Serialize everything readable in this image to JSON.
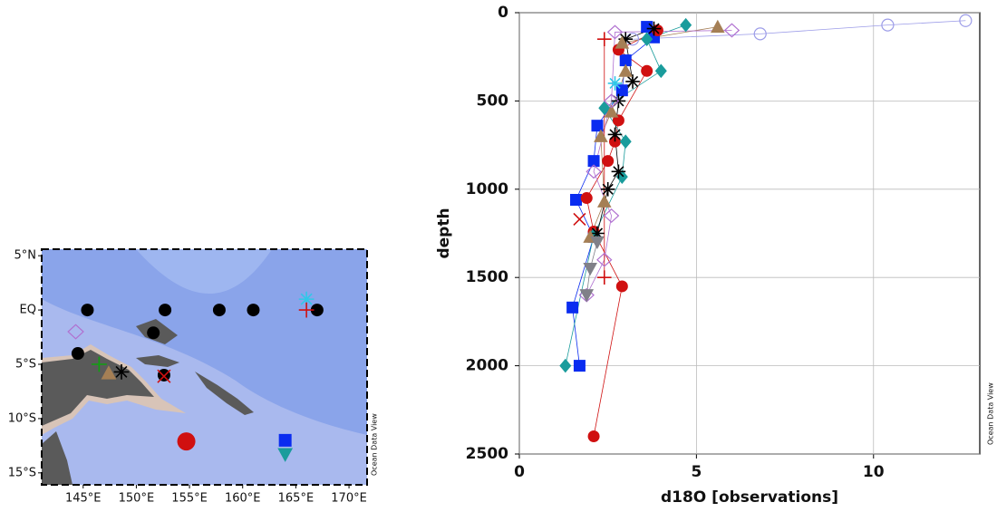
{
  "chart_data": [
    {
      "type": "map",
      "watermark": "Ocean Data View",
      "xlim": [
        141.1,
        171.7
      ],
      "ylim": [
        -16.1,
        5.6
      ],
      "xticks": [
        {
          "value": 145,
          "label": "145°E"
        },
        {
          "value": 150,
          "label": "150°E"
        },
        {
          "value": 155,
          "label": "155°E"
        },
        {
          "value": 160,
          "label": "160°E"
        },
        {
          "value": 165,
          "label": "165°E"
        },
        {
          "value": 170,
          "label": "170°E"
        }
      ],
      "yticks": [
        {
          "value": 5,
          "label": "5°N"
        },
        {
          "value": 0,
          "label": "EQ"
        },
        {
          "value": -5,
          "label": "5°S"
        },
        {
          "value": -10,
          "label": "10°S"
        },
        {
          "value": -15,
          "label": "15°S"
        }
      ],
      "series": [
        {
          "color": "#000000",
          "marker": "circle",
          "x": [
            145.4,
            152.7,
            157.8,
            161.0,
            167.0,
            151.6,
            144.5,
            152.6
          ],
          "values": [
            0,
            0,
            0,
            0,
            0,
            -2.1,
            -4.0,
            -6.0
          ]
        },
        {
          "color": "#b070d0",
          "marker": "open-diamond",
          "x": [
            144.3
          ],
          "values": [
            -2.0
          ]
        },
        {
          "color": "#10a010",
          "marker": "plus",
          "x": [
            146.5
          ],
          "values": [
            -5.0
          ]
        },
        {
          "color": "#a57f55",
          "marker": "triangle",
          "x": [
            147.4
          ],
          "values": [
            -5.8
          ]
        },
        {
          "color": "#000000",
          "marker": "asterisk",
          "x": [
            148.6
          ],
          "values": [
            -5.7
          ]
        },
        {
          "color": "#d01010",
          "marker": "cross",
          "x": [
            152.6
          ],
          "values": [
            -6.1
          ]
        },
        {
          "color": "#d01010",
          "marker": "circle",
          "x": [
            154.7
          ],
          "values": [
            -12.1
          ]
        },
        {
          "color": "#0a2cf0",
          "marker": "square",
          "x": [
            164.0
          ],
          "values": [
            -12.0
          ]
        },
        {
          "color": "#1a9c9c",
          "marker": "down-triangle",
          "x": [
            164.0
          ],
          "values": [
            -13.3
          ]
        },
        {
          "color": "#30c8e8",
          "marker": "asterisk",
          "x": [
            166.0
          ],
          "values": [
            1.0
          ]
        },
        {
          "color": "#d01010",
          "marker": "plus",
          "x": [
            166.0
          ],
          "values": [
            0.0
          ]
        }
      ]
    },
    {
      "type": "scatter",
      "watermark": "Ocean Data View",
      "xlabel": "d18O [observations]",
      "ylabel": "depth",
      "xlim": [
        0,
        13
      ],
      "ylim": [
        2500,
        0
      ],
      "xticks": [
        0,
        5,
        10
      ],
      "yticks": [
        0,
        500,
        1000,
        1500,
        2000,
        2500
      ],
      "grid": true,
      "series": [
        {
          "color": "#9c9ce8",
          "marker": "open-circle",
          "x": [
            12.6,
            10.4,
            6.8,
            3.2
          ],
          "values": [
            45,
            70,
            120,
            150
          ]
        },
        {
          "color": "#0a2cf0",
          "marker": "square",
          "x": [
            3.6,
            3.8,
            3.0,
            2.9,
            2.2,
            2.1,
            1.6,
            2.1,
            1.5,
            1.7
          ],
          "values": [
            80,
            140,
            270,
            440,
            640,
            840,
            1060,
            1270,
            1670,
            2000
          ]
        },
        {
          "color": "#d01010",
          "marker": "circle",
          "x": [
            3.9,
            2.8,
            3.6,
            2.8,
            2.7,
            2.5,
            1.9,
            2.1,
            2.9,
            2.1
          ],
          "values": [
            100,
            210,
            330,
            610,
            730,
            840,
            1050,
            1240,
            1550,
            2400
          ]
        },
        {
          "color": "#1a9c9c",
          "marker": "diamond",
          "x": [
            4.7,
            3.6,
            4.0,
            2.4,
            3.0,
            2.9,
            2.1,
            1.3
          ],
          "values": [
            70,
            150,
            330,
            540,
            730,
            930,
            1260,
            2000
          ]
        },
        {
          "color": "#000000",
          "marker": "asterisk",
          "x": [
            3.8,
            3.0,
            3.2,
            2.8,
            2.7,
            2.8,
            2.5,
            2.2
          ],
          "values": [
            90,
            150,
            390,
            500,
            690,
            900,
            1000,
            1250
          ]
        },
        {
          "color": "#a57f55",
          "marker": "triangle",
          "x": [
            5.6,
            2.9,
            3.0,
            2.6,
            2.3,
            2.4,
            2.0
          ],
          "values": [
            80,
            170,
            330,
            560,
            700,
            1070,
            1270
          ]
        },
        {
          "color": "#b070d0",
          "marker": "open-diamond",
          "x": [
            6.0,
            2.7,
            2.6,
            2.1,
            2.6,
            2.4,
            1.9
          ],
          "values": [
            100,
            110,
            500,
            900,
            1150,
            1400,
            1600
          ]
        },
        {
          "color": "#808088",
          "marker": "down-triangle",
          "x": [
            2.2,
            2.0,
            1.9
          ],
          "values": [
            1300,
            1450,
            1600
          ]
        },
        {
          "color": "#d01010",
          "marker": "plus",
          "x": [
            2.4,
            2.4
          ],
          "values": [
            150,
            1500
          ]
        },
        {
          "color": "#d01010",
          "marker": "cross",
          "x": [
            1.7
          ],
          "values": [
            1170
          ]
        },
        {
          "color": "#30c8e8",
          "marker": "asterisk",
          "x": [
            2.7
          ],
          "values": [
            400
          ]
        }
      ]
    }
  ]
}
